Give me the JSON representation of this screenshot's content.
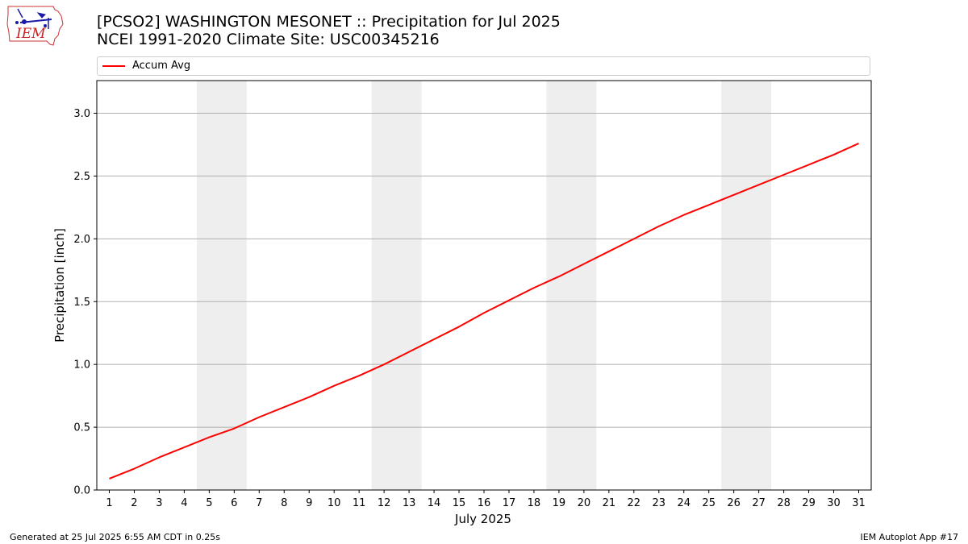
{
  "title_line1": "[PCSO2] WASHINGTON MESONET :: Precipitation for Jul 2025",
  "title_line2": "NCEI 1991-2020 Climate Site: USC00345216",
  "logo_text": "IEM",
  "footer_left": "Generated at 25 Jul 2025 6:55 AM CDT in 0.25s",
  "footer_right": "IEM Autoplot App #17",
  "colors": {
    "line": "#ff0000",
    "weekend_band": "#eeeeee",
    "grid": "#b0b0b0"
  },
  "chart_data": {
    "type": "line",
    "xlabel": "July 2025",
    "ylabel": "Precipitation [inch]",
    "xlim": [
      0.5,
      31.5
    ],
    "ylim": [
      0,
      3.26
    ],
    "x": [
      1,
      2,
      3,
      4,
      5,
      6,
      7,
      8,
      9,
      10,
      11,
      12,
      13,
      14,
      15,
      16,
      17,
      18,
      19,
      20,
      21,
      22,
      23,
      24,
      25,
      26,
      27,
      28,
      29,
      30,
      31
    ],
    "x_tick_labels": [
      "1",
      "2",
      "3",
      "4",
      "5",
      "6",
      "7",
      "8",
      "9",
      "10",
      "11",
      "12",
      "13",
      "14",
      "15",
      "16",
      "17",
      "18",
      "19",
      "20",
      "21",
      "22",
      "23",
      "24",
      "25",
      "26",
      "27",
      "28",
      "29",
      "30",
      "31"
    ],
    "y_ticks": [
      0.0,
      0.5,
      1.0,
      1.5,
      2.0,
      2.5,
      3.0
    ],
    "y_tick_labels": [
      "0.0",
      "0.5",
      "1.0",
      "1.5",
      "2.0",
      "2.5",
      "3.0"
    ],
    "grid": "horizontal",
    "legend_placement": "top",
    "weekend_bands": [
      [
        4.5,
        6.5
      ],
      [
        11.5,
        13.5
      ],
      [
        18.5,
        20.5
      ],
      [
        25.5,
        27.5
      ]
    ],
    "series": [
      {
        "name": "Accum Avg",
        "color": "#ff0000",
        "values": [
          0.09,
          0.17,
          0.26,
          0.34,
          0.42,
          0.49,
          0.58,
          0.66,
          0.74,
          0.83,
          0.91,
          1.0,
          1.1,
          1.2,
          1.3,
          1.41,
          1.51,
          1.61,
          1.7,
          1.8,
          1.9,
          2.0,
          2.1,
          2.19,
          2.27,
          2.35,
          2.43,
          2.51,
          2.59,
          2.67,
          2.76
        ]
      }
    ]
  }
}
